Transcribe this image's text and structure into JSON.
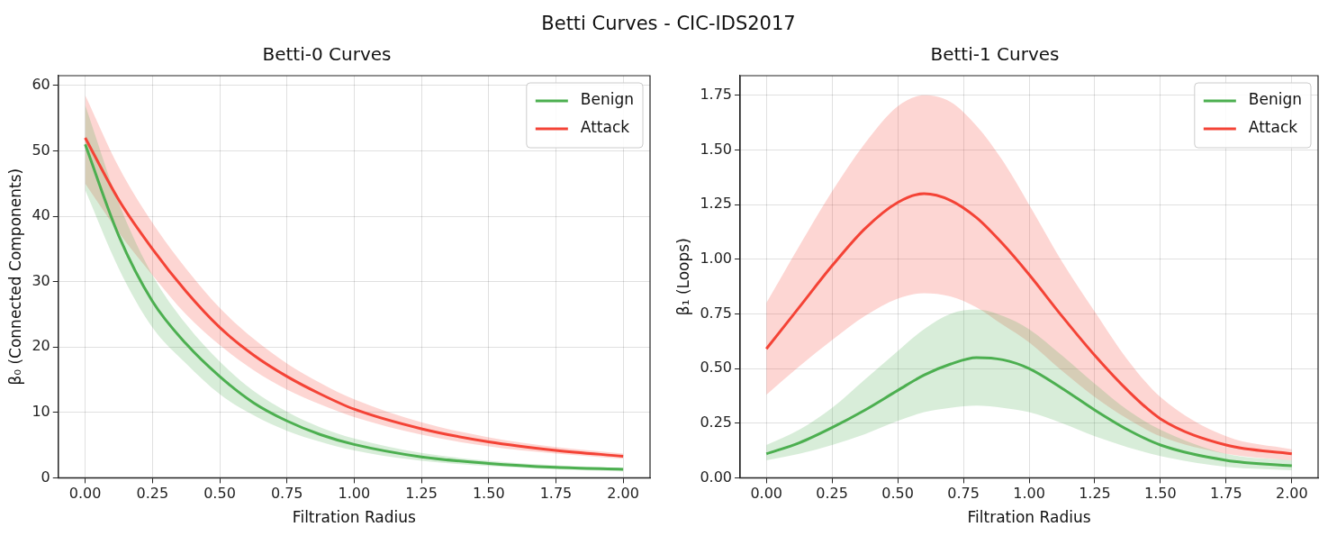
{
  "chart_data": [
    {
      "type": "line",
      "title": "Betti-0 Curves",
      "xlabel": "Filtration Radius",
      "ylabel": "β₀ (Connected Components)",
      "x": [
        0,
        0.125,
        0.25,
        0.375,
        0.5,
        0.625,
        0.75,
        0.875,
        1.0,
        1.25,
        1.5,
        1.75,
        2.0
      ],
      "series": [
        {
          "name": "Benign",
          "color": "#4caf50",
          "values": [
            51,
            37,
            27,
            20.5,
            15.5,
            11.5,
            8.7,
            6.6,
            5.1,
            3.2,
            2.2,
            1.6,
            1.3
          ],
          "lower": [
            44,
            32,
            23,
            17.5,
            12.8,
            9.6,
            7.2,
            5.5,
            4.2,
            2.6,
            1.8,
            1.3,
            1.0
          ],
          "upper": [
            57,
            42,
            31,
            23.5,
            17.8,
            13.3,
            10.1,
            7.7,
            6.0,
            3.8,
            2.6,
            1.9,
            1.5
          ]
        },
        {
          "name": "Attack",
          "color": "#f44336",
          "values": [
            52,
            42.5,
            35,
            28.5,
            23,
            18.8,
            15.5,
            12.8,
            10.5,
            7.5,
            5.5,
            4.2,
            3.3
          ],
          "lower": [
            45,
            37.5,
            31,
            25,
            20.3,
            16.5,
            13.5,
            11.2,
            9.3,
            6.6,
            4.8,
            3.7,
            2.9
          ],
          "upper": [
            58.5,
            47.5,
            39,
            32,
            26,
            21.3,
            17.5,
            14.5,
            12,
            8.5,
            6.2,
            4.7,
            3.7
          ]
        }
      ],
      "xlim": [
        -0.1,
        2.1
      ],
      "xticks": [
        {
          "value": 0,
          "label": "0.00"
        },
        {
          "value": 0.25,
          "label": "0.25"
        },
        {
          "value": 0.5,
          "label": "0.50"
        },
        {
          "value": 0.75,
          "label": "0.75"
        },
        {
          "value": 1,
          "label": "1.00"
        },
        {
          "value": 1.25,
          "label": "1.25"
        },
        {
          "value": 1.5,
          "label": "1.50"
        },
        {
          "value": 1.75,
          "label": "1.75"
        },
        {
          "value": 2,
          "label": "2.00"
        }
      ],
      "ylim": [
        0,
        61.5
      ],
      "yticks": [
        0,
        10,
        20,
        30,
        40,
        50,
        60
      ],
      "grid": true,
      "legend": "top right",
      "marker": "none",
      "line_style": "solid",
      "annotations": [
        "Betti Curves - CIC-IDS2017"
      ]
    },
    {
      "type": "line",
      "title": "Betti-1 Curves",
      "xlabel": "Filtration Radius",
      "ylabel": "β₁ (Loops)",
      "x": [
        0,
        0.125,
        0.25,
        0.375,
        0.5,
        0.6,
        0.7,
        0.8,
        0.9,
        1.0,
        1.125,
        1.25,
        1.375,
        1.5,
        1.75,
        2.0
      ],
      "series": [
        {
          "name": "Benign",
          "color": "#4caf50",
          "values": [
            0.11,
            0.16,
            0.23,
            0.31,
            0.4,
            0.47,
            0.52,
            0.55,
            0.54,
            0.5,
            0.41,
            0.31,
            0.22,
            0.15,
            0.08,
            0.055
          ],
          "lower": [
            0.08,
            0.11,
            0.15,
            0.2,
            0.26,
            0.3,
            0.32,
            0.33,
            0.32,
            0.3,
            0.25,
            0.19,
            0.14,
            0.1,
            0.05,
            0.035
          ],
          "upper": [
            0.15,
            0.22,
            0.32,
            0.45,
            0.58,
            0.68,
            0.75,
            0.77,
            0.74,
            0.68,
            0.56,
            0.43,
            0.31,
            0.22,
            0.11,
            0.08
          ]
        },
        {
          "name": "Attack",
          "color": "#f44336",
          "values": [
            0.59,
            0.78,
            0.97,
            1.14,
            1.26,
            1.3,
            1.27,
            1.19,
            1.07,
            0.93,
            0.74,
            0.56,
            0.4,
            0.27,
            0.15,
            0.11
          ],
          "lower": [
            0.38,
            0.51,
            0.63,
            0.74,
            0.82,
            0.845,
            0.83,
            0.78,
            0.7,
            0.62,
            0.49,
            0.37,
            0.27,
            0.19,
            0.11,
            0.08
          ],
          "upper": [
            0.8,
            1.06,
            1.31,
            1.53,
            1.7,
            1.75,
            1.72,
            1.61,
            1.45,
            1.25,
            0.99,
            0.76,
            0.54,
            0.37,
            0.19,
            0.13
          ]
        }
      ],
      "xlim": [
        -0.1,
        2.1
      ],
      "xticks": [
        {
          "value": 0,
          "label": "0.00"
        },
        {
          "value": 0.25,
          "label": "0.25"
        },
        {
          "value": 0.5,
          "label": "0.50"
        },
        {
          "value": 0.75,
          "label": "0.75"
        },
        {
          "value": 1,
          "label": "1.00"
        },
        {
          "value": 1.25,
          "label": "1.25"
        },
        {
          "value": 1.5,
          "label": "1.50"
        },
        {
          "value": 1.75,
          "label": "1.75"
        },
        {
          "value": 2,
          "label": "2.00"
        }
      ],
      "ylim": [
        0,
        1.84
      ],
      "yticks": [
        {
          "value": 0,
          "label": "0.00"
        },
        {
          "value": 0.25,
          "label": "0.25"
        },
        {
          "value": 0.5,
          "label": "0.50"
        },
        {
          "value": 0.75,
          "label": "0.75"
        },
        {
          "value": 1,
          "label": "1.00"
        },
        {
          "value": 1.25,
          "label": "1.25"
        },
        {
          "value": 1.5,
          "label": "1.50"
        },
        {
          "value": 1.75,
          "label": "1.75"
        }
      ],
      "grid": true,
      "legend": "top right",
      "marker": "none",
      "line_style": "solid"
    }
  ]
}
